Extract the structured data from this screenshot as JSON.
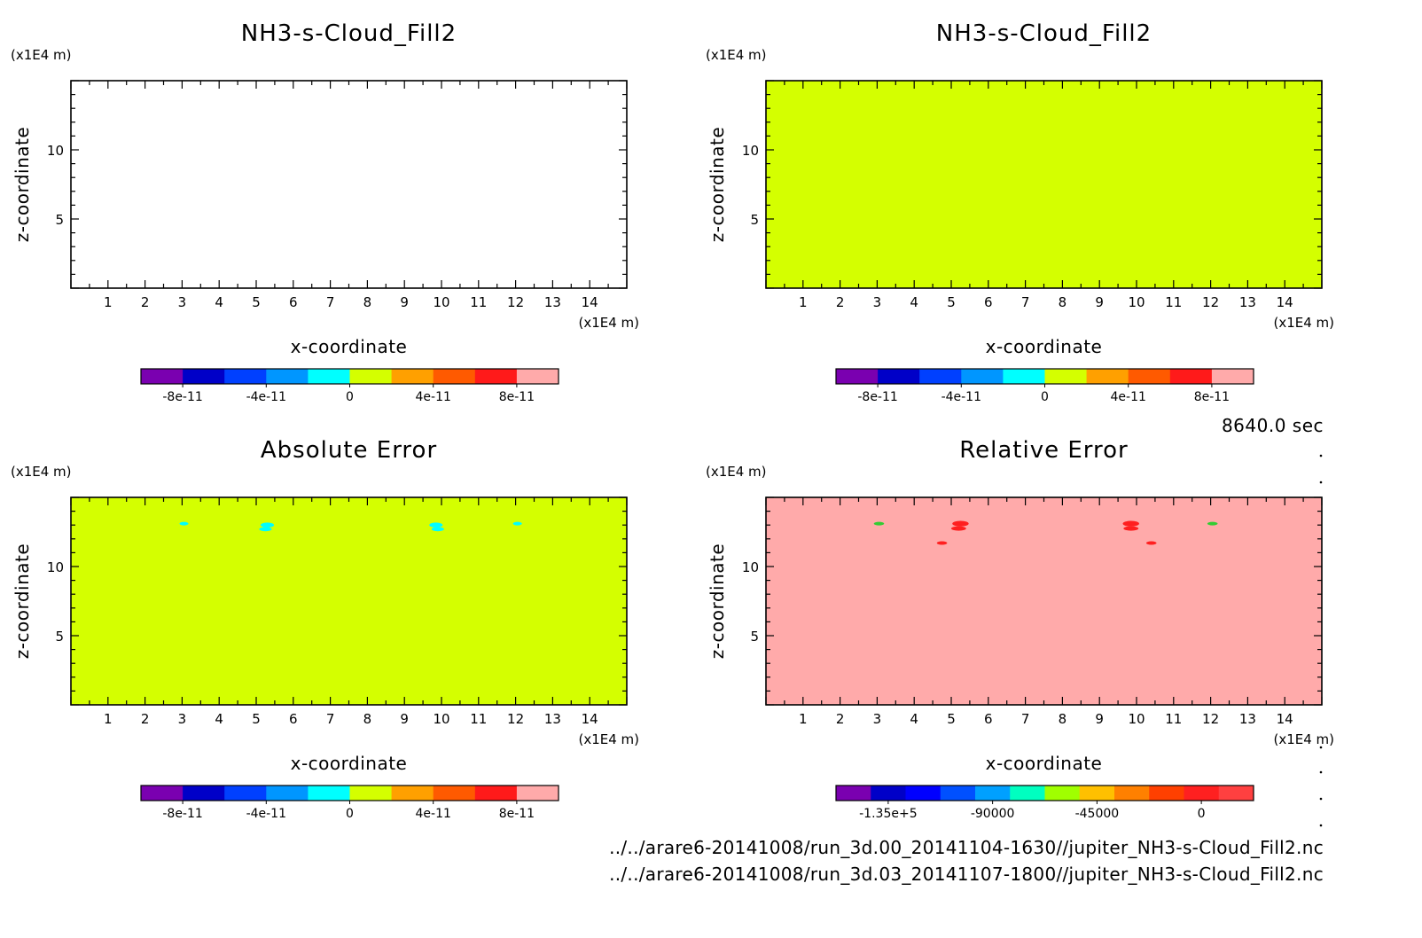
{
  "time_label": "8640.0 sec",
  "footer_lines": [
    "../../arare6-20141008/run_3d.00_20141104-1630//jupiter_NH3-s-Cloud_Fill2.nc",
    "../../arare6-20141008/run_3d.03_20141107-1800//jupiter_NH3-s-Cloud_Fill2.nc"
  ],
  "colors": {
    "fill_zero": "#d4ff00",
    "fill_relative": "#ffaaaa",
    "feature_cyan": "#00ffff",
    "feature_red": "#ff2020",
    "feature_green": "#33cc33"
  },
  "chart_data": [
    {
      "type": "heatmap",
      "title": "NH3-s-Cloud_Fill2",
      "xlabel": "x-coordinate",
      "ylabel": "z-coordinate",
      "xunit": "(x1E4 m)",
      "yunit": "(x1E4 m)",
      "xlim": [
        0,
        15
      ],
      "ylim": [
        0,
        15
      ],
      "xticks": [
        1,
        2,
        3,
        4,
        5,
        6,
        7,
        8,
        9,
        10,
        11,
        12,
        13,
        14
      ],
      "yticks": [
        5,
        10
      ],
      "field": "empty",
      "features": [],
      "colorbar": {
        "colors": [
          "#7a00b0",
          "#0000c8",
          "#0040ff",
          "#0096ff",
          "#00ffff",
          "#d4ff00",
          "#ffa000",
          "#ff5a00",
          "#ff1a1a",
          "#ffaaaa"
        ],
        "tick_labels": [
          "-8e-11",
          "-4e-11",
          "0",
          "4e-11",
          "8e-11"
        ],
        "tick_positions": [
          1,
          3,
          5,
          7,
          9
        ]
      }
    },
    {
      "type": "heatmap",
      "title": "NH3-s-Cloud_Fill2",
      "xlabel": "x-coordinate",
      "ylabel": "z-coordinate",
      "xunit": "(x1E4 m)",
      "yunit": "(x1E4 m)",
      "xlim": [
        0,
        15
      ],
      "ylim": [
        0,
        15
      ],
      "xticks": [
        1,
        2,
        3,
        4,
        5,
        6,
        7,
        8,
        9,
        10,
        11,
        12,
        13,
        14
      ],
      "yticks": [
        5,
        10
      ],
      "field": "#d4ff00",
      "features": [],
      "colorbar": {
        "colors": [
          "#7a00b0",
          "#0000c8",
          "#0040ff",
          "#0096ff",
          "#00ffff",
          "#d4ff00",
          "#ffa000",
          "#ff5a00",
          "#ff1a1a",
          "#ffaaaa"
        ],
        "tick_labels": [
          "-8e-11",
          "-4e-11",
          "0",
          "4e-11",
          "8e-11"
        ],
        "tick_positions": [
          1,
          3,
          5,
          7,
          9
        ]
      }
    },
    {
      "type": "heatmap",
      "title": "Absolute Error",
      "xlabel": "x-coordinate",
      "ylabel": "z-coordinate",
      "xunit": "(x1E4 m)",
      "yunit": "(x1E4 m)",
      "xlim": [
        0,
        15
      ],
      "ylim": [
        0,
        15
      ],
      "xticks": [
        1,
        2,
        3,
        4,
        5,
        6,
        7,
        8,
        9,
        10,
        11,
        12,
        13,
        14
      ],
      "yticks": [
        5,
        10
      ],
      "field": "#d4ff00",
      "features": [
        {
          "x": 3.05,
          "z": 13.1,
          "rx": 0.12,
          "rz": 0.12,
          "color": "#00ffff"
        },
        {
          "x": 5.3,
          "z": 13.0,
          "rx": 0.18,
          "rz": 0.18,
          "color": "#00ffff"
        },
        {
          "x": 5.25,
          "z": 12.7,
          "rx": 0.17,
          "rz": 0.15,
          "color": "#00ffff"
        },
        {
          "x": 9.85,
          "z": 13.0,
          "rx": 0.18,
          "rz": 0.18,
          "color": "#00ffff"
        },
        {
          "x": 9.9,
          "z": 12.7,
          "rx": 0.17,
          "rz": 0.15,
          "color": "#00ffff"
        },
        {
          "x": 12.05,
          "z": 13.1,
          "rx": 0.12,
          "rz": 0.12,
          "color": "#00ffff"
        }
      ],
      "colorbar": {
        "colors": [
          "#7a00b0",
          "#0000c8",
          "#0040ff",
          "#0096ff",
          "#00ffff",
          "#d4ff00",
          "#ffa000",
          "#ff5a00",
          "#ff1a1a",
          "#ffaaaa"
        ],
        "tick_labels": [
          "-8e-11",
          "-4e-11",
          "0",
          "4e-11",
          "8e-11"
        ],
        "tick_positions": [
          1,
          3,
          5,
          7,
          9
        ]
      }
    },
    {
      "type": "heatmap",
      "title": "Relative Error",
      "xlabel": "x-coordinate",
      "ylabel": "z-coordinate",
      "xunit": "(x1E4 m)",
      "yunit": "(x1E4 m)",
      "xlim": [
        0,
        15
      ],
      "ylim": [
        0,
        15
      ],
      "xticks": [
        1,
        2,
        3,
        4,
        5,
        6,
        7,
        8,
        9,
        10,
        11,
        12,
        13,
        14
      ],
      "yticks": [
        5,
        10
      ],
      "field": "#ffaaaa",
      "features": [
        {
          "x": 3.05,
          "z": 13.1,
          "rx": 0.14,
          "rz": 0.1,
          "color": "#33cc33"
        },
        {
          "x": 5.25,
          "z": 13.1,
          "rx": 0.22,
          "rz": 0.2,
          "color": "#ff2020"
        },
        {
          "x": 5.2,
          "z": 12.75,
          "rx": 0.2,
          "rz": 0.16,
          "color": "#ff2020"
        },
        {
          "x": 4.75,
          "z": 11.7,
          "rx": 0.14,
          "rz": 0.12,
          "color": "#ff2020"
        },
        {
          "x": 9.85,
          "z": 13.1,
          "rx": 0.22,
          "rz": 0.2,
          "color": "#ff2020"
        },
        {
          "x": 9.85,
          "z": 12.75,
          "rx": 0.2,
          "rz": 0.16,
          "color": "#ff2020"
        },
        {
          "x": 10.4,
          "z": 11.7,
          "rx": 0.14,
          "rz": 0.12,
          "color": "#ff2020"
        },
        {
          "x": 12.05,
          "z": 13.1,
          "rx": 0.14,
          "rz": 0.1,
          "color": "#33cc33"
        }
      ],
      "colorbar": {
        "colors": [
          "#7a00b0",
          "#0000c8",
          "#0000ff",
          "#0050ff",
          "#00a0ff",
          "#00ffc0",
          "#a0ff00",
          "#ffc000",
          "#ff8000",
          "#ff4000",
          "#ff2020",
          "#ff4040"
        ],
        "tick_labels": [
          "-1.35e+5",
          "-90000",
          "-45000",
          "0"
        ],
        "tick_positions": [
          1.5,
          4.5,
          7.5,
          10.5
        ]
      }
    }
  ]
}
